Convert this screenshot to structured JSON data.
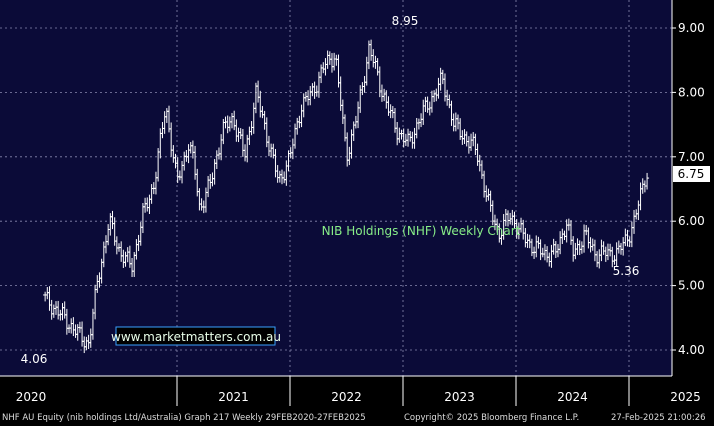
{
  "chart_data": {
    "type": "ohlc",
    "title": "NIB Holdings (NHF) Weekly Chart",
    "watermark": "www.marketmatters.com.au",
    "y_ticks": [
      "9.00",
      "8.00",
      "7.00",
      "6.00",
      "5.00",
      "4.00"
    ],
    "x_labels": [
      "2020",
      "2021",
      "2022",
      "2023",
      "2024",
      "2025"
    ],
    "ylim": [
      3.6,
      9.4
    ],
    "xlim": [
      2019.833,
      2025.233
    ],
    "last_price": "6.75",
    "annotations": [
      {
        "text": "8.95",
        "x": 2022.92,
        "y": 8.95
      },
      {
        "text": "4.06",
        "x": 2020.25,
        "y": 4.06
      },
      {
        "text": "5.36",
        "x": 2024.9,
        "y": 5.36
      }
    ],
    "series": [
      {
        "x": [
          2019.83,
          2020.0,
          2020.15,
          2020.22,
          2020.3,
          2020.4,
          2020.5,
          2020.6,
          2020.7,
          2020.8,
          2020.9,
          2021.0,
          2021.1,
          2021.15,
          2021.2,
          2021.3,
          2021.4,
          2021.5,
          2021.6,
          2021.7,
          2021.8,
          2021.9,
          2022.0,
          2022.1,
          2022.2,
          2022.3,
          2022.4,
          2022.5,
          2022.6,
          2022.7,
          2022.8,
          2022.9,
          2022.95,
          2023.05,
          2023.15,
          2023.25,
          2023.35,
          2023.45,
          2023.55,
          2023.65,
          2023.75,
          2023.85,
          2023.95,
          2024.05,
          2024.15,
          2024.25,
          2024.35,
          2024.45,
          2024.5,
          2024.55,
          2024.6,
          2024.7,
          2024.8,
          2024.9,
          2025.0,
          2025.05,
          2025.1,
          2025.15
        ],
        "values": [
          4.8,
          4.5,
          4.2,
          4.1,
          5.1,
          6.0,
          5.5,
          5.3,
          6.1,
          6.6,
          7.8,
          6.6,
          7.2,
          6.9,
          6.2,
          6.6,
          7.4,
          7.6,
          7.0,
          8.0,
          7.3,
          6.6,
          7.0,
          7.8,
          8.0,
          8.4,
          8.6,
          7.0,
          7.7,
          8.7,
          8.1,
          7.6,
          7.4,
          7.2,
          7.6,
          7.9,
          8.2,
          7.5,
          7.3,
          7.1,
          6.3,
          5.8,
          6.1,
          5.8,
          5.6,
          5.5,
          5.5,
          6.0,
          5.5,
          5.6,
          5.8,
          5.5,
          5.5,
          5.5,
          5.8,
          6.0,
          6.4,
          6.75
        ],
        "name": ""
      }
    ]
  }
}
